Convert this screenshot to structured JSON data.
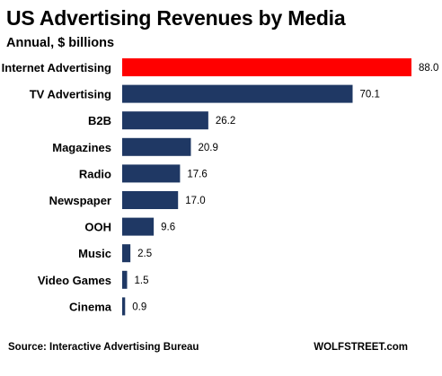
{
  "title": "US Advertising Revenues by Media",
  "subtitle": "Annual, $ billions",
  "source": "Source: Interactive Advertising Bureau",
  "credit": "WOLFSTREET.com",
  "colors": {
    "highlight": "#ff0000",
    "bar": "#1f3864"
  },
  "chart_data": {
    "type": "bar",
    "orientation": "horizontal",
    "title": "US Advertising Revenues by Media",
    "subtitle": "Annual, $ billions",
    "categories": [
      "Internet Advertising",
      "TV Advertising",
      "B2B",
      "Magazines",
      "Radio",
      "Newspaper",
      "OOH",
      "Music",
      "Video Games",
      "Cinema"
    ],
    "values": [
      88.0,
      70.1,
      26.2,
      20.9,
      17.6,
      17.0,
      9.6,
      2.5,
      1.5,
      0.9
    ],
    "value_labels": [
      "88.0",
      "70.1",
      "26.2",
      "20.9",
      "17.6",
      "17.0",
      "9.6",
      "2.5",
      "1.5",
      "0.9"
    ],
    "highlight_category": "Internet Advertising",
    "xlim": [
      0,
      88
    ],
    "grid": false,
    "legend": "none"
  }
}
